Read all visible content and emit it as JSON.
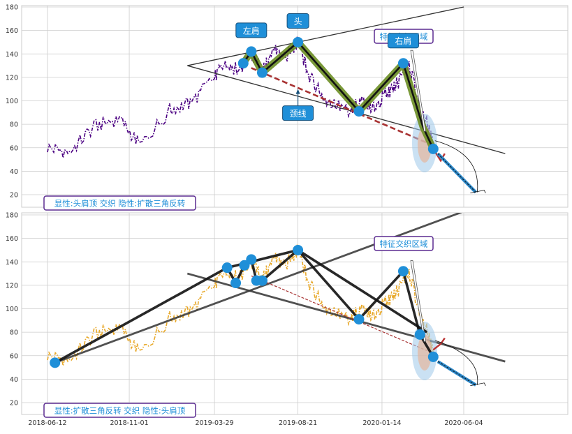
{
  "chart_data": [
    {
      "type": "line",
      "title": "",
      "xlabel": "",
      "ylabel": "",
      "ylim": [
        10,
        182
      ],
      "yticks": [
        20,
        40,
        60,
        80,
        100,
        120,
        140,
        160,
        180
      ],
      "grid": true,
      "series_color": "#4b0082",
      "price_series": {
        "x": [
          "2018-06-12",
          "2018-07-20",
          "2018-09-01",
          "2018-10-15",
          "2018-11-20",
          "2019-01-10",
          "2019-02-15",
          "2019-03-29",
          "2019-04-20",
          "2019-05-10",
          "2019-06-01",
          "2019-06-20",
          "2019-07-10",
          "2019-08-01",
          "2019-08-21",
          "2019-09-10",
          "2019-10-10",
          "2019-11-15",
          "2019-12-10",
          "2020-01-01",
          "2020-01-20",
          "2020-02-10",
          "2020-03-01",
          "2020-03-20",
          "2020-04-05",
          "2020-04-12"
        ],
        "y": [
          60,
          56,
          78,
          85,
          62,
          92,
          98,
          120,
          133,
          125,
          140,
          125,
          142,
          138,
          150,
          120,
          100,
          92,
          98,
          95,
          105,
          115,
          132,
          95,
          75,
          60
        ]
      },
      "pattern_points": [
        {
          "label": "左肩",
          "x": "2019-06-01",
          "y": 142
        },
        {
          "label": "头",
          "x": "2019-08-21",
          "y": 150
        },
        {
          "label": "右肩",
          "x": "2020-02-20",
          "y": 132
        },
        {
          "label": "颈线",
          "x": "2019-08-21",
          "y": 113
        }
      ],
      "zigzag": {
        "x": [
          "2019-05-18",
          "2019-06-01",
          "2019-06-20",
          "2019-08-21",
          "2019-12-05",
          "2020-02-20",
          "2020-03-25",
          "2020-04-12"
        ],
        "y": [
          132,
          142,
          124,
          150,
          91,
          132,
          78,
          59
        ]
      },
      "neckline": {
        "x": [
          "2019-06-01",
          "2020-04-12"
        ],
        "y": [
          128,
          62
        ]
      },
      "triangle_upper": {
        "x": [
          "2019-02-10",
          "2020-06-04"
        ],
        "y": [
          130,
          180
        ]
      },
      "triangle_lower": {
        "x": [
          "2019-02-10",
          "2020-08-15"
        ],
        "y": [
          130,
          55
        ]
      },
      "projection": {
        "x": [
          "2020-04-20",
          "2020-06-25"
        ],
        "y": [
          55,
          22
        ]
      },
      "annotation_region": "特征交织区域",
      "bottom_label": "显性:头肩顶 交织 隐性:扩散三角反转"
    },
    {
      "type": "line",
      "title": "",
      "xlabel": "",
      "ylabel": "",
      "ylim": [
        8,
        182
      ],
      "yticks": [
        20,
        40,
        60,
        80,
        100,
        120,
        140,
        160,
        180
      ],
      "grid": true,
      "series_color": "#e8a92b",
      "price_series": {
        "x": [
          "2018-06-12",
          "2018-07-20",
          "2018-09-01",
          "2018-10-15",
          "2018-11-20",
          "2019-01-10",
          "2019-02-15",
          "2019-03-29",
          "2019-04-20",
          "2019-05-10",
          "2019-06-01",
          "2019-06-20",
          "2019-07-10",
          "2019-08-01",
          "2019-08-21",
          "2019-09-10",
          "2019-10-10",
          "2019-11-15",
          "2019-12-10",
          "2020-01-01",
          "2020-01-20",
          "2020-02-10",
          "2020-03-01",
          "2020-03-20",
          "2020-04-05",
          "2020-04-12"
        ],
        "y": [
          60,
          56,
          78,
          85,
          62,
          92,
          98,
          120,
          133,
          125,
          140,
          125,
          142,
          138,
          150,
          120,
          100,
          92,
          98,
          95,
          105,
          115,
          132,
          95,
          75,
          60
        ]
      },
      "zigzag": {
        "x": [
          "2018-06-25",
          "2019-04-20",
          "2019-05-05",
          "2019-05-20",
          "2019-06-01",
          "2019-06-10",
          "2019-06-20",
          "2019-08-21",
          "2019-12-05",
          "2020-02-20",
          "2020-03-20",
          "2020-04-12"
        ],
        "y": [
          54,
          135,
          122,
          137,
          142,
          124,
          124,
          150,
          91,
          132,
          78,
          59
        ]
      },
      "triangle_upper": {
        "x": [
          "2018-06-25",
          "2020-06-04"
        ],
        "y": [
          54,
          183
        ]
      },
      "triangle_lower": {
        "x": [
          "2019-02-10",
          "2020-08-15"
        ],
        "y": [
          130,
          55
        ]
      },
      "upper_edge": {
        "x": [
          "2019-04-20",
          "2019-08-21",
          "2020-04-01"
        ],
        "y": [
          135,
          150,
          80
        ]
      },
      "neckline": {
        "x": [
          "2019-06-01",
          "2020-04-12"
        ],
        "y": [
          128,
          62
        ]
      },
      "projection": {
        "x": [
          "2020-04-20",
          "2020-06-25"
        ],
        "y": [
          55,
          35
        ]
      },
      "annotation_region": "特征交织区域",
      "bottom_label": "显性:扩散三角反转 交织 隐性:头肩顶"
    }
  ],
  "xticks": [
    "2018-06-12",
    "2018-11-01",
    "2019-03-29",
    "2019-08-21",
    "2020-01-14",
    "2020-06-04"
  ],
  "colors": {
    "zigzag_fill": "#6b8e23",
    "node": "#1f8fd8",
    "neckline": "#a83232",
    "label_border": "#5b2c91",
    "label_text": "#1f8fd8",
    "axis_grid": "#cccccc"
  }
}
